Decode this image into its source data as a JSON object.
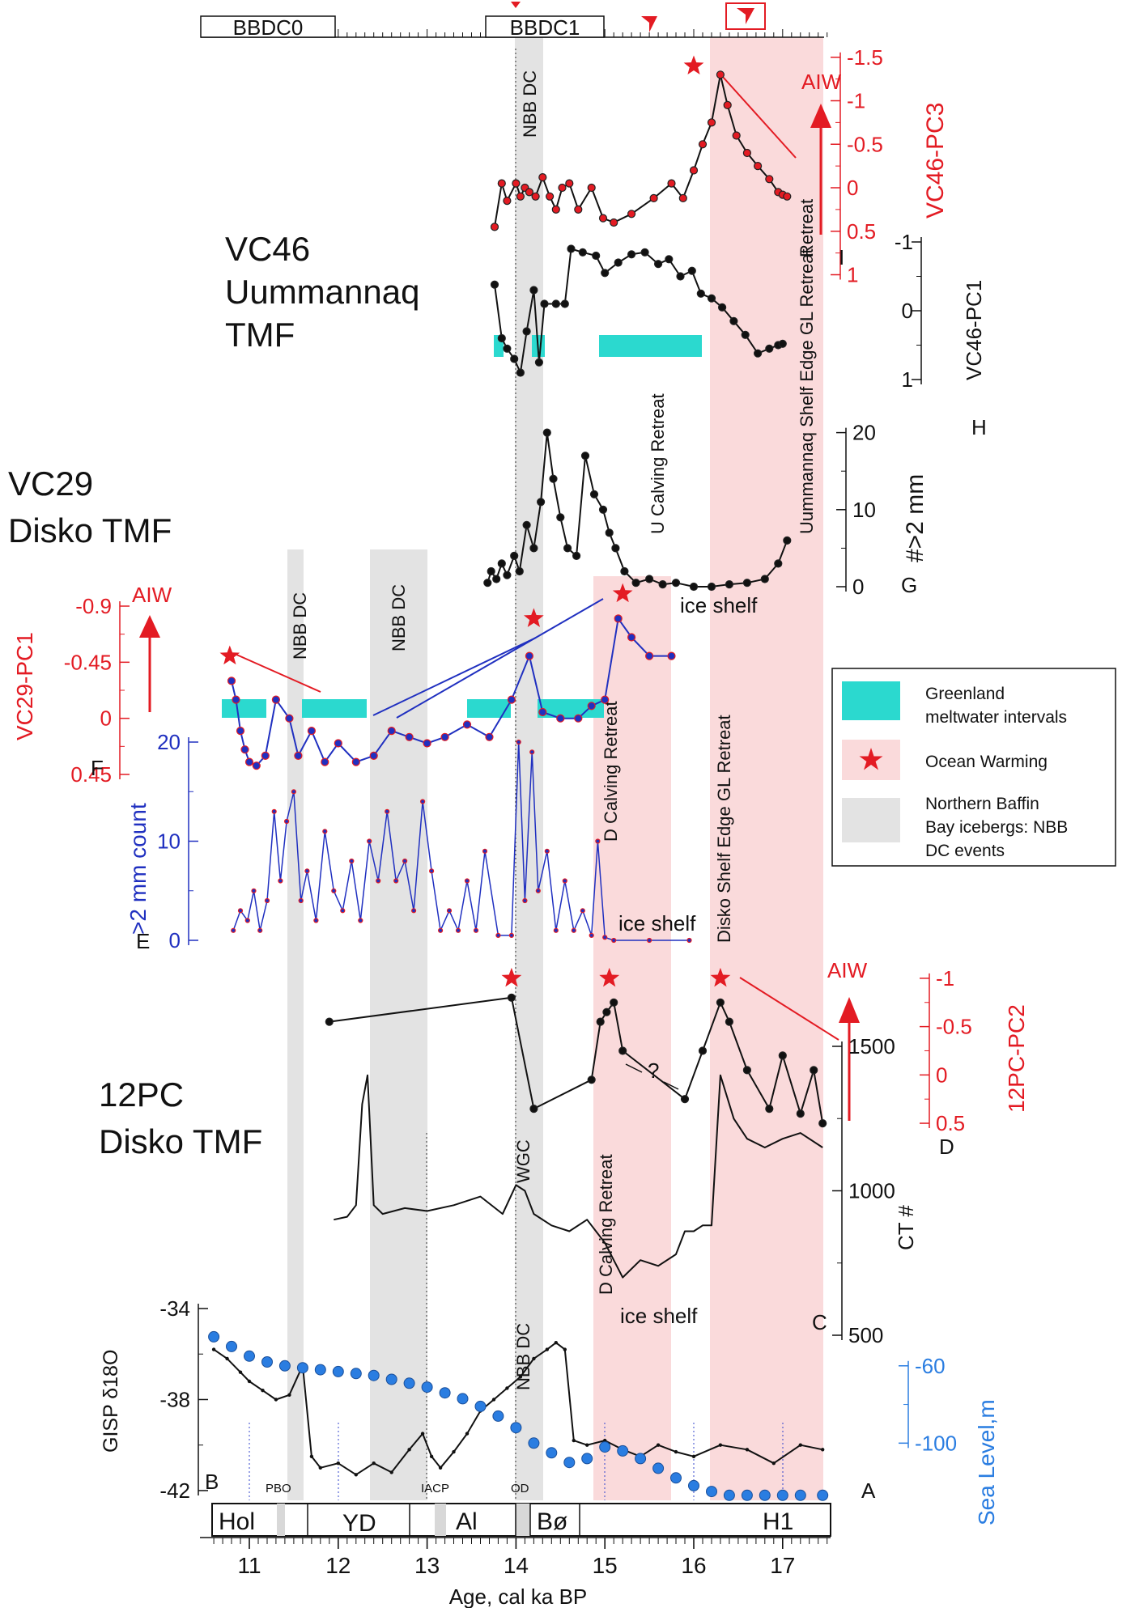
{
  "chart_data": [
    {
      "type": "line",
      "panel": "I",
      "ylabel": "VC46-PC3",
      "ylabel_note": "AIW",
      "ylim": [
        0.8,
        -1.6
      ],
      "ticks": [
        -1.5,
        -1,
        -0.5,
        0,
        0.5,
        1
      ],
      "tick_labels": [
        "-1.5",
        "-1",
        "-0.5",
        "0",
        "0.5",
        "1"
      ],
      "color": "#e31b23",
      "x": [
        13.76,
        13.84,
        13.9,
        14.0,
        14.05,
        14.1,
        14.15,
        14.22,
        14.3,
        14.38,
        14.45,
        14.52,
        14.6,
        14.7,
        14.85,
        14.98,
        15.1,
        15.3,
        15.55,
        15.75,
        15.88,
        16.0,
        16.1,
        16.2,
        16.3,
        16.38,
        16.48,
        16.6,
        16.72,
        16.85,
        16.95,
        17.0,
        17.05
      ],
      "values": [
        0.45,
        -0.05,
        0.15,
        -0.05,
        0.1,
        0.0,
        0.05,
        0.1,
        -0.12,
        0.1,
        0.25,
        0.0,
        -0.05,
        0.25,
        0.0,
        0.35,
        0.4,
        0.3,
        0.12,
        -0.05,
        0.12,
        -0.2,
        -0.5,
        -0.75,
        -1.3,
        -0.95,
        -0.6,
        -0.4,
        -0.25,
        -0.1,
        0.05,
        0.08,
        0.1
      ],
      "stars": [
        [
          16.0,
          -1.4
        ]
      ]
    },
    {
      "type": "line",
      "panel": "H",
      "ylabel": "VC46-PC1",
      "ylim": [
        1.6,
        -1.2
      ],
      "ticks": [
        -1,
        0,
        1
      ],
      "tick_labels": [
        "-1",
        "0",
        "1"
      ],
      "color": "#111111",
      "x": [
        13.76,
        13.84,
        13.9,
        13.98,
        14.05,
        14.12,
        14.2,
        14.26,
        14.32,
        14.45,
        14.55,
        14.62,
        14.75,
        14.9,
        15.0,
        15.15,
        15.3,
        15.45,
        15.6,
        15.72,
        15.85,
        15.98,
        16.08,
        16.2,
        16.32,
        16.45,
        16.58,
        16.72,
        16.85,
        16.95,
        17.0
      ],
      "values": [
        -0.38,
        0.4,
        0.55,
        0.7,
        0.9,
        0.3,
        -0.3,
        0.75,
        -0.1,
        -0.1,
        -0.1,
        -0.9,
        -0.85,
        -0.8,
        -0.55,
        -0.7,
        -0.82,
        -0.85,
        -0.68,
        -0.75,
        -0.5,
        -0.58,
        -0.25,
        -0.18,
        -0.05,
        0.15,
        0.35,
        0.62,
        0.55,
        0.5,
        0.48
      ]
    },
    {
      "type": "line",
      "panel": "G",
      "ylabel": "#>2 mm",
      "ylim": [
        0,
        25
      ],
      "ticks": [
        0,
        10,
        20
      ],
      "tick_labels": [
        "0",
        "10",
        "20"
      ],
      "color": "#111111",
      "x": [
        13.68,
        13.72,
        13.78,
        13.84,
        13.9,
        13.98,
        14.04,
        14.12,
        14.2,
        14.28,
        14.35,
        14.42,
        14.5,
        14.58,
        14.68,
        14.78,
        14.88,
        14.98,
        15.05,
        15.12,
        15.22,
        15.35,
        15.5,
        15.65,
        15.8,
        16.0,
        16.2,
        16.4,
        16.6,
        16.8,
        16.95,
        17.05
      ],
      "values": [
        0.5,
        2,
        1,
        3,
        1.5,
        4,
        2,
        8,
        5,
        11,
        20,
        14,
        9,
        5,
        4,
        17,
        12,
        10,
        7,
        5,
        2,
        0.5,
        1,
        0.3,
        0.5,
        0,
        0,
        0.3,
        0.5,
        1,
        3,
        6
      ],
      "annotations": [
        "U Calving Retreat",
        "ice shelf"
      ]
    },
    {
      "type": "line",
      "panel": "F",
      "ylabel": "VC29-PC1",
      "ylabel_note": "AIW",
      "ylim": [
        0.45,
        -0.9
      ],
      "ticks": [
        -0.9,
        -0.45,
        0,
        0.45
      ],
      "tick_labels": [
        "-0.9",
        "-0.45",
        "0",
        "0.45"
      ],
      "color": "#2030c0",
      "x": [
        10.8,
        10.85,
        10.9,
        10.95,
        11.0,
        11.08,
        11.18,
        11.3,
        11.45,
        11.55,
        11.7,
        11.85,
        12.0,
        12.2,
        12.4,
        12.6,
        12.8,
        13.0,
        13.2,
        13.45,
        13.7,
        13.95,
        14.15,
        14.3,
        14.5,
        14.7,
        14.85,
        15.0,
        15.15,
        15.3,
        15.5,
        15.75
      ],
      "values": [
        -0.3,
        -0.15,
        0.1,
        0.25,
        0.35,
        0.38,
        0.3,
        -0.15,
        0.0,
        0.3,
        0.1,
        0.35,
        0.2,
        0.35,
        0.3,
        0.1,
        0.15,
        0.2,
        0.15,
        0.05,
        0.15,
        -0.15,
        -0.5,
        -0.05,
        0.0,
        0.0,
        -0.1,
        -0.15,
        -0.8,
        -0.65,
        -0.5,
        -0.5
      ],
      "stars": [
        [
          10.78,
          -0.5
        ],
        [
          14.2,
          -0.8
        ],
        [
          15.2,
          -1.0
        ]
      ]
    },
    {
      "type": "line",
      "panel": "E",
      "ylabel": ">2 mm count",
      "ylim": [
        0,
        20
      ],
      "ticks": [
        0,
        10,
        20
      ],
      "tick_labels": [
        "0",
        "10",
        "20"
      ],
      "color": "#2030c0",
      "x": [
        10.82,
        10.9,
        10.98,
        11.05,
        11.12,
        11.2,
        11.28,
        11.35,
        11.42,
        11.5,
        11.58,
        11.65,
        11.75,
        11.85,
        11.95,
        12.05,
        12.15,
        12.25,
        12.35,
        12.45,
        12.55,
        12.65,
        12.75,
        12.85,
        12.95,
        13.05,
        13.15,
        13.25,
        13.35,
        13.45,
        13.55,
        13.65,
        13.8,
        13.95,
        14.03,
        14.1,
        14.18,
        14.25,
        14.35,
        14.45,
        14.55,
        14.65,
        14.75,
        14.85,
        14.92,
        15.0,
        15.1,
        15.5,
        15.95
      ],
      "values": [
        1,
        3,
        2,
        5,
        1,
        4,
        13,
        6,
        12,
        15,
        4,
        7,
        2,
        11,
        5,
        3,
        8,
        2,
        10,
        6,
        13,
        6,
        8,
        3,
        14,
        7,
        1,
        3,
        1,
        6,
        1,
        9,
        0.5,
        0.5,
        20,
        4,
        19,
        5,
        9,
        1,
        6,
        1,
        3,
        0.5,
        10,
        0.3,
        0,
        0,
        0
      ],
      "annotations": [
        "ice shelf",
        "D Calving Retreat",
        "Disko Shelf Edge GL Retreat",
        "Uummannaq Shelf Edge GL Retreat"
      ]
    },
    {
      "type": "line",
      "panel": "D",
      "ylabel": "12PC-PC2",
      "ylabel_note": "AIW",
      "ylim": [
        0.6,
        -1.2
      ],
      "ticks": [
        -1,
        -0.5,
        0,
        0.5
      ],
      "tick_labels": [
        "-1",
        "-0.5",
        "0",
        "0.5"
      ],
      "color": "#111111",
      "x": [
        11.9,
        13.95,
        14.2,
        14.85,
        14.95,
        15.02,
        15.1,
        15.2,
        15.9,
        16.1,
        16.3,
        16.4,
        16.6,
        16.85,
        17.0,
        17.2,
        17.35,
        17.45
      ],
      "values": [
        -0.55,
        -0.8,
        0.35,
        0.05,
        -0.55,
        -0.65,
        -0.75,
        -0.25,
        0.25,
        -0.25,
        -0.75,
        -0.55,
        -0.05,
        0.35,
        -0.2,
        0.4,
        -0.05,
        0.5
      ],
      "stars": [
        [
          13.95,
          -1.0
        ],
        [
          15.05,
          -1.0
        ],
        [
          16.3,
          -1.0
        ]
      ],
      "annotations": [
        "?"
      ]
    },
    {
      "type": "line",
      "panel": "C",
      "ylabel": "CT #",
      "ylim": [
        500,
        1500
      ],
      "ticks": [
        500,
        1000,
        1500
      ],
      "tick_labels": [
        "500",
        "1000",
        "1500"
      ],
      "color": "#111111",
      "x": [
        11.95,
        12.1,
        12.2,
        12.27,
        12.33,
        12.4,
        12.5,
        12.75,
        13.0,
        13.3,
        13.6,
        13.85,
        14.0,
        14.1,
        14.2,
        14.4,
        14.6,
        14.8,
        15.0,
        15.2,
        15.4,
        15.6,
        15.8,
        15.9,
        16.0,
        16.1,
        16.2,
        16.3,
        16.45,
        16.6,
        16.8,
        17.0,
        17.2,
        17.45
      ],
      "values": [
        900,
        910,
        950,
        1300,
        1400,
        950,
        920,
        940,
        930,
        950,
        980,
        920,
        1020,
        1000,
        920,
        880,
        860,
        900,
        820,
        700,
        760,
        740,
        780,
        860,
        860,
        880,
        880,
        1400,
        1250,
        1180,
        1150,
        1180,
        1200,
        1150
      ],
      "annotations": [
        "WGC",
        "D Calving Retreat",
        "NBB DC",
        "ice shelf"
      ]
    },
    {
      "type": "line",
      "panel": "B",
      "ylabel": "GISP δ18O",
      "ylim": [
        -42.5,
        -34
      ],
      "ticks": [
        -42,
        -38,
        -34
      ],
      "tick_labels": [
        "-42",
        "-38",
        "-34"
      ],
      "color": "#111111",
      "x": [
        10.6,
        10.75,
        10.9,
        11.0,
        11.15,
        11.3,
        11.45,
        11.6,
        11.7,
        11.8,
        12.0,
        12.2,
        12.4,
        12.6,
        12.8,
        12.95,
        13.05,
        13.15,
        13.3,
        13.45,
        13.6,
        13.75,
        13.9,
        14.05,
        14.2,
        14.35,
        14.45,
        14.55,
        14.65,
        14.8,
        15.0,
        15.2,
        15.4,
        15.6,
        15.8,
        16.0,
        16.3,
        16.6,
        16.9,
        17.2,
        17.45
      ],
      "values": [
        -35.8,
        -36.2,
        -36.8,
        -37.2,
        -37.6,
        -38.0,
        -37.8,
        -36.5,
        -40.5,
        -41.0,
        -40.8,
        -41.3,
        -40.8,
        -41.2,
        -40.2,
        -39.5,
        -40.5,
        -41.0,
        -40.3,
        -39.5,
        -38.5,
        -38.0,
        -37.5,
        -37.0,
        -36.2,
        -35.8,
        -35.5,
        -35.8,
        -39.8,
        -40.0,
        -39.8,
        -40.2,
        -40.5,
        -40.0,
        -40.3,
        -40.5,
        -40.0,
        -40.2,
        -40.8,
        -40.0,
        -40.2
      ]
    },
    {
      "type": "scatter",
      "panel": "A",
      "ylabel": "Sea Level,m",
      "ylim": [
        -130,
        -40
      ],
      "ticks": [
        -60,
        -100
      ],
      "tick_labels": [
        "-60",
        "-100"
      ],
      "color": "#2a7de1",
      "x": [
        10.6,
        10.8,
        11.0,
        11.2,
        11.4,
        11.6,
        11.8,
        12.0,
        12.2,
        12.4,
        12.6,
        12.8,
        13.0,
        13.2,
        13.4,
        13.6,
        13.8,
        14.0,
        14.2,
        14.4,
        14.6,
        14.8,
        15.0,
        15.2,
        15.4,
        15.6,
        15.8,
        16.0,
        16.2,
        16.4,
        16.6,
        16.8,
        17.0,
        17.2,
        17.45
      ],
      "values": [
        -45,
        -50,
        -55,
        -58,
        -60,
        -61,
        -62,
        -63,
        -64,
        -65,
        -67,
        -69,
        -71,
        -74,
        -77,
        -81,
        -86,
        -92,
        -100,
        -105,
        -110,
        -108,
        -102,
        -104,
        -108,
        -113,
        -118,
        -122,
        -125,
        -127,
        -127,
        -127,
        -127,
        -127,
        -127
      ]
    }
  ],
  "text": {
    "top_bar": {
      "label_left": "BBDC0",
      "label_right": "BBDC1"
    },
    "sites": {
      "vc46": {
        "line1": "VC46",
        "line2": "Uummannaq",
        "line3": "TMF"
      },
      "vc29": {
        "line1": "VC29",
        "line2": "Disko TMF"
      },
      "pc12": {
        "line1": "12PC",
        "line2": "Disko TMF"
      }
    },
    "panel_letters": {
      "A": "A",
      "B": "B",
      "C": "C",
      "D": "D",
      "E": "E",
      "F": "F",
      "G": "G",
      "H": "H",
      "I": "I"
    },
    "aiw": "AIW",
    "nbb_dc": "NBB DC",
    "uummannaq_shelf_retreat": "Uummannaq Shelf Edge GL Retreat",
    "u_calving_retreat": "U Calving Retreat",
    "d_calving_retreat": "D Calving Retreat",
    "disko_shelf_retreat": "Disko Shelf Edge GL Retreat",
    "retreat": "Retreat",
    "ice_shelf": "ice shelf",
    "question": "?",
    "wgc": "WGC",
    "event_labels": {
      "pbo": "PBO",
      "iacp": "IACP",
      "od": "OD"
    },
    "periods": {
      "hol": "Hol",
      "yd": "YD",
      "al": "Al",
      "bo": "Bø",
      "h1": "H1"
    },
    "x_axis": {
      "label": "Age, cal ka BP",
      "ticks": [
        11,
        12,
        13,
        14,
        15,
        16,
        17
      ],
      "tick_labels": [
        "11",
        "12",
        "13",
        "14",
        "15",
        "16",
        "17"
      ]
    },
    "legend": {
      "meltwater": [
        "Greenland",
        "meltwater intervals"
      ],
      "warming": "Ocean Warming",
      "nbb": [
        "Northern Baffin",
        "Bay icebergs: NBB",
        "DC events"
      ]
    }
  },
  "colors": {
    "red": "#e31b23",
    "blue": "#2030c0",
    "sea_level": "#2a7de1",
    "meltwater": "#2bd9cf",
    "pink": "#fadadb",
    "gray": "#e3e3e3",
    "black": "#111111"
  }
}
